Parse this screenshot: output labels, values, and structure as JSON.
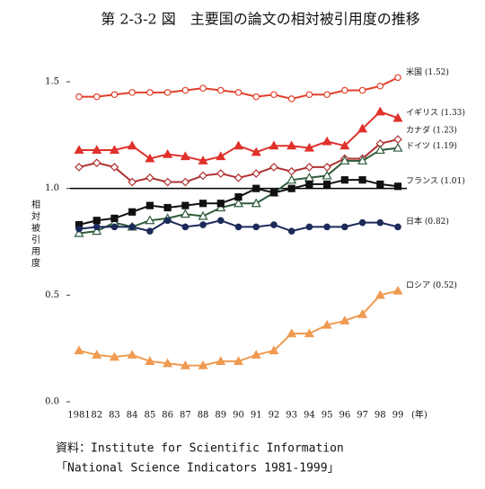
{
  "chart_data": {
    "type": "line",
    "title": "第 2-3-2 図　主要国の論文の相対被引用度の推移",
    "y_label": "相対被引用度",
    "x_unit": "(年)",
    "source": [
      "資料：Institute for Scientific Information",
      "「National Science Indicators 1981-1999」"
    ],
    "categories": [
      "1981",
      "82",
      "83",
      "84",
      "85",
      "86",
      "87",
      "88",
      "89",
      "90",
      "91",
      "92",
      "93",
      "94",
      "95",
      "96",
      "97",
      "98",
      "99"
    ],
    "ylim": [
      0,
      1.5
    ],
    "yticks": [
      {
        "value": 0,
        "label": "0.0"
      },
      {
        "value": 0.5,
        "label": "0.5"
      },
      {
        "value": 1,
        "label": "1.0"
      },
      {
        "value": 1.5,
        "label": "1.5"
      }
    ],
    "hline": 1,
    "series": [
      {
        "name": "米国 (1.52)",
        "color": "#e0402a",
        "marker": "circle-open",
        "values": [
          1.43,
          1.43,
          1.44,
          1.45,
          1.45,
          1.45,
          1.46,
          1.47,
          1.46,
          1.45,
          1.43,
          1.44,
          1.42,
          1.44,
          1.44,
          1.46,
          1.46,
          1.48,
          1.52
        ]
      },
      {
        "name": "イギリス (1.33)",
        "color": "#e0302a",
        "marker": "triangle",
        "values": [
          1.18,
          1.18,
          1.18,
          1.2,
          1.14,
          1.16,
          1.15,
          1.13,
          1.15,
          1.2,
          1.17,
          1.2,
          1.2,
          1.19,
          1.22,
          1.2,
          1.28,
          1.36,
          1.33
        ]
      },
      {
        "name": "カナダ (1.23)",
        "color": "#b03030",
        "marker": "diamond-open",
        "values": [
          1.1,
          1.12,
          1.1,
          1.03,
          1.05,
          1.03,
          1.03,
          1.06,
          1.07,
          1.05,
          1.07,
          1.1,
          1.08,
          1.1,
          1.1,
          1.14,
          1.14,
          1.21,
          1.23
        ]
      },
      {
        "name": "ドイツ (1.19)",
        "color": "#2f5a3a",
        "marker": "triangle-open",
        "values": [
          0.79,
          0.8,
          0.84,
          0.82,
          0.85,
          0.86,
          0.88,
          0.87,
          0.91,
          0.93,
          0.93,
          0.98,
          1.04,
          1.05,
          1.06,
          1.13,
          1.13,
          1.18,
          1.19
        ]
      },
      {
        "name": "フランス (1.01)",
        "color": "#111111",
        "marker": "square",
        "values": [
          0.83,
          0.85,
          0.86,
          0.89,
          0.92,
          0.91,
          0.92,
          0.93,
          0.93,
          0.96,
          1.0,
          0.98,
          1.0,
          1.02,
          1.02,
          1.04,
          1.04,
          1.02,
          1.01
        ]
      },
      {
        "name": "日本 (0.82)",
        "color": "#1c2a5a",
        "marker": "circle",
        "values": [
          0.81,
          0.82,
          0.82,
          0.82,
          0.8,
          0.85,
          0.82,
          0.83,
          0.85,
          0.82,
          0.82,
          0.83,
          0.8,
          0.82,
          0.82,
          0.82,
          0.84,
          0.84,
          0.82
        ]
      },
      {
        "name": "ロシア (0.52)",
        "color": "#f09a50",
        "marker": "triangle",
        "values": [
          0.24,
          0.22,
          0.21,
          0.22,
          0.19,
          0.18,
          0.17,
          0.17,
          0.19,
          0.19,
          0.22,
          0.24,
          0.32,
          0.32,
          0.36,
          0.38,
          0.41,
          0.5,
          0.52
        ]
      }
    ]
  }
}
